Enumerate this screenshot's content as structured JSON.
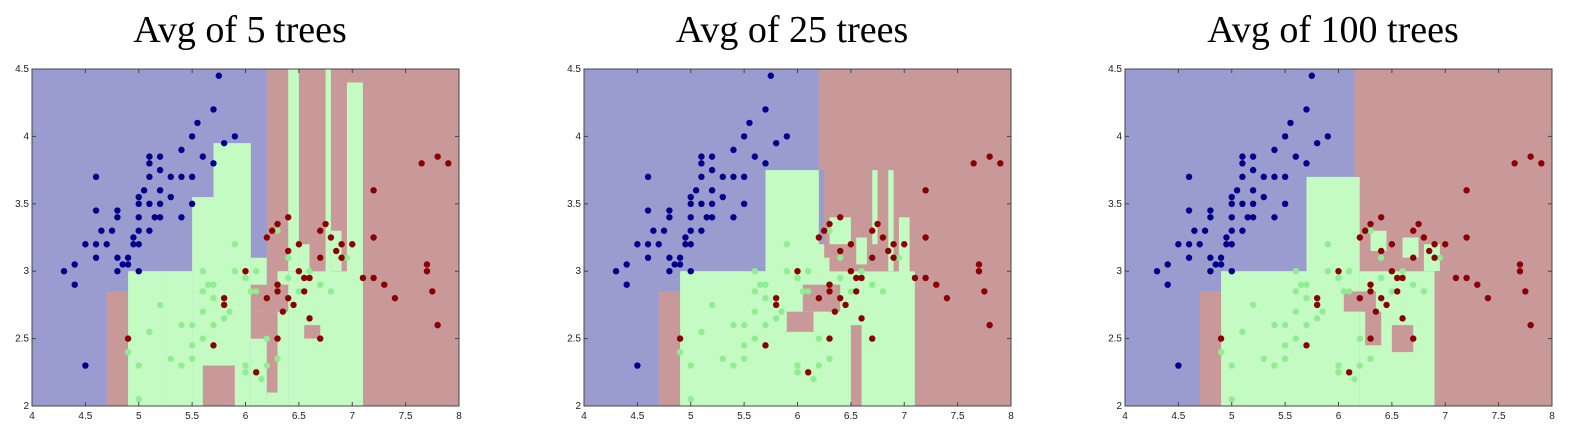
{
  "colors": {
    "region_class_1": "#9a9bcf",
    "region_class_2": "#c3fbc3",
    "region_class_3": "#c99898",
    "point_class_1": "#00008b",
    "point_class_2": "#90ee90",
    "point_class_3": "#8b0000"
  },
  "chart_data": [
    {
      "type": "scatter",
      "title": "Avg of 5 trees",
      "xlabel": "",
      "ylabel": "",
      "xlim": [
        4,
        8
      ],
      "ylim": [
        2,
        4.5
      ],
      "xticks": [
        "4",
        "4.5",
        "5",
        "5.5",
        "6",
        "6.5",
        "7",
        "7.5",
        "8"
      ],
      "yticks": [
        "2",
        "2.5",
        "3",
        "3.5",
        "4",
        "4.5"
      ],
      "grid": false,
      "legend": "none",
      "ensemble_trees": 5
    },
    {
      "type": "scatter",
      "title": "Avg of 25 trees",
      "xlabel": "",
      "ylabel": "",
      "xlim": [
        4,
        8
      ],
      "ylim": [
        2,
        4.5
      ],
      "xticks": [
        "4",
        "4.5",
        "5",
        "5.5",
        "6",
        "6.5",
        "7",
        "7.5",
        "8"
      ],
      "yticks": [
        "2",
        "2.5",
        "3",
        "3.5",
        "4",
        "4.5"
      ],
      "grid": false,
      "legend": "none",
      "ensemble_trees": 25
    },
    {
      "type": "scatter",
      "title": "Avg of 100 trees",
      "xlabel": "",
      "ylabel": "",
      "xlim": [
        4,
        8
      ],
      "ylim": [
        2,
        4.5
      ],
      "xticks": [
        "4",
        "4.5",
        "5",
        "5.5",
        "6",
        "6.5",
        "7",
        "7.5",
        "8"
      ],
      "yticks": [
        "2",
        "2.5",
        "3",
        "3.5",
        "4",
        "4.5"
      ],
      "grid": false,
      "legend": "none",
      "ensemble_trees": 100
    }
  ],
  "points": {
    "class_1": [
      [
        4.3,
        3.0
      ],
      [
        4.4,
        3.05
      ],
      [
        4.4,
        2.9
      ],
      [
        4.5,
        3.2
      ],
      [
        4.5,
        2.3
      ],
      [
        4.6,
        3.45
      ],
      [
        4.6,
        3.2
      ],
      [
        4.6,
        3.1
      ],
      [
        4.6,
        3.7
      ],
      [
        4.65,
        3.3
      ],
      [
        4.7,
        3.2
      ],
      [
        4.75,
        3.3
      ],
      [
        4.8,
        3.4
      ],
      [
        4.8,
        3.1
      ],
      [
        4.8,
        3.45
      ],
      [
        4.8,
        3.0
      ],
      [
        4.85,
        3.05
      ],
      [
        4.9,
        3.05
      ],
      [
        4.9,
        3.1
      ],
      [
        4.95,
        3.2
      ],
      [
        4.95,
        3.25
      ],
      [
        5.0,
        3.0
      ],
      [
        5.0,
        3.4
      ],
      [
        5.0,
        3.3
      ],
      [
        5.0,
        3.5
      ],
      [
        5.0,
        3.2
      ],
      [
        5.0,
        3.55
      ],
      [
        5.05,
        3.6
      ],
      [
        5.1,
        3.5
      ],
      [
        5.1,
        3.3
      ],
      [
        5.1,
        3.7
      ],
      [
        5.1,
        3.8
      ],
      [
        5.1,
        3.85
      ],
      [
        5.15,
        3.4
      ],
      [
        5.2,
        3.6
      ],
      [
        5.2,
        3.5
      ],
      [
        5.2,
        3.85
      ],
      [
        5.2,
        3.75
      ],
      [
        5.2,
        3.4
      ],
      [
        5.3,
        3.7
      ],
      [
        5.3,
        3.55
      ],
      [
        5.4,
        3.9
      ],
      [
        5.4,
        3.7
      ],
      [
        5.4,
        3.4
      ],
      [
        5.5,
        3.5
      ],
      [
        5.5,
        4.0
      ],
      [
        5.5,
        3.7
      ],
      [
        5.55,
        4.1
      ],
      [
        5.6,
        3.85
      ],
      [
        5.7,
        4.2
      ],
      [
        5.7,
        3.8
      ],
      [
        5.75,
        4.45
      ],
      [
        5.8,
        3.95
      ],
      [
        5.9,
        4.0
      ]
    ],
    "class_2": [
      [
        4.9,
        2.4
      ],
      [
        5.0,
        2.05
      ],
      [
        5.0,
        2.3
      ],
      [
        5.1,
        2.55
      ],
      [
        5.2,
        2.75
      ],
      [
        5.3,
        2.35
      ],
      [
        5.4,
        2.6
      ],
      [
        5.4,
        2.3
      ],
      [
        5.5,
        2.45
      ],
      [
        5.5,
        2.35
      ],
      [
        5.5,
        2.6
      ],
      [
        5.6,
        2.85
      ],
      [
        5.6,
        3.0
      ],
      [
        5.6,
        2.5
      ],
      [
        5.6,
        2.7
      ],
      [
        5.65,
        2.9
      ],
      [
        5.7,
        2.9
      ],
      [
        5.7,
        2.8
      ],
      [
        5.7,
        2.6
      ],
      [
        5.8,
        2.75
      ],
      [
        5.8,
        2.65
      ],
      [
        5.9,
        3.2
      ],
      [
        5.9,
        3.0
      ],
      [
        6.0,
        2.25
      ],
      [
        6.0,
        2.3
      ],
      [
        6.0,
        2.95
      ],
      [
        6.05,
        2.85
      ],
      [
        6.1,
        2.85
      ],
      [
        6.1,
        3.0
      ],
      [
        6.15,
        2.2
      ],
      [
        6.2,
        2.3
      ],
      [
        6.2,
        2.5
      ],
      [
        6.3,
        2.35
      ],
      [
        6.4,
        3.1
      ],
      [
        6.5,
        2.85
      ],
      [
        6.6,
        3.0
      ],
      [
        6.7,
        3.1
      ],
      [
        6.7,
        2.9
      ],
      [
        6.8,
        2.85
      ],
      [
        6.95,
        3.1
      ],
      [
        6.4,
        2.95
      ],
      [
        5.85,
        2.7
      ],
      [
        6.3,
        3.3
      ]
    ],
    "class_3": [
      [
        4.9,
        2.5
      ],
      [
        5.7,
        2.45
      ],
      [
        5.8,
        2.75
      ],
      [
        5.8,
        2.8
      ],
      [
        6.0,
        3.0
      ],
      [
        6.1,
        2.25
      ],
      [
        6.2,
        3.25
      ],
      [
        6.2,
        2.8
      ],
      [
        6.25,
        3.3
      ],
      [
        6.3,
        3.35
      ],
      [
        6.3,
        2.85
      ],
      [
        6.3,
        2.9
      ],
      [
        6.3,
        2.5
      ],
      [
        6.35,
        2.7
      ],
      [
        6.4,
        3.4
      ],
      [
        6.4,
        3.15
      ],
      [
        6.4,
        2.8
      ],
      [
        6.45,
        2.75
      ],
      [
        6.5,
        3.2
      ],
      [
        6.5,
        3.0
      ],
      [
        6.55,
        2.95
      ],
      [
        6.55,
        2.85
      ],
      [
        6.6,
        2.95
      ],
      [
        6.6,
        2.65
      ],
      [
        6.7,
        3.3
      ],
      [
        6.7,
        3.1
      ],
      [
        6.7,
        2.5
      ],
      [
        6.75,
        3.35
      ],
      [
        6.8,
        3.25
      ],
      [
        6.85,
        3.15
      ],
      [
        6.9,
        3.2
      ],
      [
        6.9,
        3.1
      ],
      [
        7.0,
        3.2
      ],
      [
        7.1,
        2.95
      ],
      [
        7.2,
        3.6
      ],
      [
        7.2,
        3.25
      ],
      [
        7.2,
        2.95
      ],
      [
        7.3,
        2.9
      ],
      [
        7.4,
        2.8
      ],
      [
        7.65,
        3.8
      ],
      [
        7.7,
        3.0
      ],
      [
        7.7,
        3.05
      ],
      [
        7.75,
        2.85
      ],
      [
        7.8,
        2.6
      ],
      [
        7.8,
        3.85
      ],
      [
        7.9,
        3.8
      ]
    ]
  }
}
